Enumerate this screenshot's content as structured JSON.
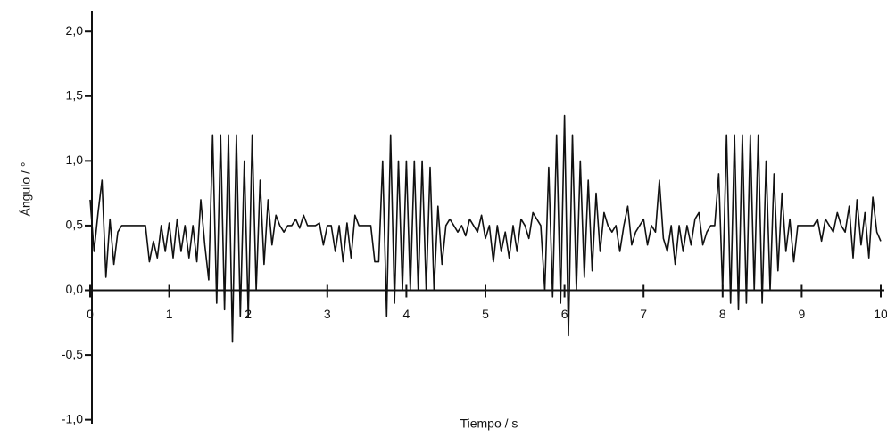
{
  "chart_data": {
    "type": "line",
    "xlabel": "Tiempo / s",
    "ylabel": "Ángulo / °",
    "x": [
      0,
      0.05,
      0.1,
      0.15,
      0.2,
      0.25,
      0.3,
      0.35,
      0.4,
      0.45,
      0.5,
      0.55,
      0.6,
      0.65,
      0.7,
      0.75,
      0.8,
      0.85,
      0.9,
      0.95,
      1,
      1.05,
      1.1,
      1.15,
      1.2,
      1.25,
      1.3,
      1.35,
      1.4,
      1.45,
      1.5,
      1.55,
      1.6,
      1.65,
      1.7,
      1.75,
      1.8,
      1.85,
      1.9,
      1.95,
      2,
      2.05,
      2.1,
      2.15,
      2.2,
      2.25,
      2.3,
      2.35,
      2.4,
      2.45,
      2.5,
      2.55,
      2.6,
      2.65,
      2.7,
      2.75,
      2.8,
      2.85,
      2.9,
      2.95,
      3,
      3.05,
      3.1,
      3.15,
      3.2,
      3.25,
      3.3,
      3.35,
      3.4,
      3.45,
      3.5,
      3.55,
      3.6,
      3.65,
      3.7,
      3.75,
      3.8,
      3.85,
      3.9,
      3.95,
      4,
      4.05,
      4.1,
      4.15,
      4.2,
      4.25,
      4.3,
      4.35,
      4.4,
      4.45,
      4.5,
      4.55,
      4.6,
      4.65,
      4.7,
      4.75,
      4.8,
      4.85,
      4.9,
      4.95,
      5,
      5.05,
      5.1,
      5.15,
      5.2,
      5.25,
      5.3,
      5.35,
      5.4,
      5.45,
      5.5,
      5.55,
      5.6,
      5.65,
      5.7,
      5.75,
      5.8,
      5.85,
      5.9,
      5.95,
      6,
      6.05,
      6.1,
      6.15,
      6.2,
      6.25,
      6.3,
      6.35,
      6.4,
      6.45,
      6.5,
      6.55,
      6.6,
      6.65,
      6.7,
      6.75,
      6.8,
      6.85,
      6.9,
      6.95,
      7,
      7.05,
      7.1,
      7.15,
      7.2,
      7.25,
      7.3,
      7.35,
      7.4,
      7.45,
      7.5,
      7.55,
      7.6,
      7.65,
      7.7,
      7.75,
      7.8,
      7.85,
      7.9,
      7.95,
      8,
      8.05,
      8.1,
      8.15,
      8.2,
      8.25,
      8.3,
      8.35,
      8.4,
      8.45,
      8.5,
      8.55,
      8.6,
      8.65,
      8.7,
      8.75,
      8.8,
      8.85,
      8.9,
      8.95,
      9,
      9.05,
      9.1,
      9.15,
      9.2,
      9.25,
      9.3,
      9.35,
      9.4,
      9.45,
      9.5,
      9.55,
      9.6,
      9.65,
      9.7,
      9.75,
      9.8,
      9.85,
      9.9,
      9.95,
      10
    ],
    "series": [
      {
        "color": "#111111",
        "values": [
          0.7,
          0.3,
          0.6,
          0.85,
          0.1,
          0.55,
          0.2,
          0.45,
          0.5,
          0.5,
          0.5,
          0.5,
          0.5,
          0.5,
          0.5,
          0.22,
          0.38,
          0.25,
          0.5,
          0.3,
          0.52,
          0.25,
          0.55,
          0.3,
          0.5,
          0.25,
          0.5,
          0.22,
          0.7,
          0.35,
          0.08,
          1.2,
          -0.1,
          1.2,
          -0.15,
          1.2,
          -0.4,
          1.2,
          -0.2,
          1.0,
          -0.2,
          1.2,
          0.0,
          0.85,
          0.2,
          0.7,
          0.35,
          0.58,
          0.5,
          0.45,
          0.5,
          0.5,
          0.55,
          0.48,
          0.58,
          0.5,
          0.5,
          0.5,
          0.52,
          0.35,
          0.5,
          0.5,
          0.3,
          0.5,
          0.22,
          0.52,
          0.25,
          0.58,
          0.5,
          0.5,
          0.5,
          0.5,
          0.22,
          0.22,
          1.0,
          -0.2,
          1.2,
          -0.1,
          1.0,
          0.0,
          1.0,
          0.0,
          1.0,
          0.0,
          1.0,
          0.0,
          0.95,
          0.0,
          0.65,
          0.2,
          0.5,
          0.55,
          0.5,
          0.45,
          0.5,
          0.42,
          0.55,
          0.5,
          0.45,
          0.58,
          0.4,
          0.5,
          0.22,
          0.5,
          0.3,
          0.45,
          0.25,
          0.5,
          0.3,
          0.55,
          0.5,
          0.4,
          0.6,
          0.55,
          0.5,
          0.0,
          0.95,
          -0.05,
          1.2,
          -0.1,
          1.35,
          -0.35,
          1.2,
          0.0,
          1.0,
          0.1,
          0.85,
          0.15,
          0.75,
          0.3,
          0.6,
          0.5,
          0.45,
          0.5,
          0.3,
          0.5,
          0.65,
          0.35,
          0.45,
          0.5,
          0.55,
          0.35,
          0.5,
          0.45,
          0.85,
          0.4,
          0.3,
          0.5,
          0.2,
          0.5,
          0.3,
          0.5,
          0.35,
          0.55,
          0.6,
          0.35,
          0.45,
          0.5,
          0.5,
          0.9,
          0.0,
          1.2,
          -0.1,
          1.2,
          -0.15,
          1.2,
          -0.1,
          1.2,
          0.0,
          1.2,
          -0.1,
          1.0,
          0.0,
          0.9,
          0.15,
          0.75,
          0.3,
          0.55,
          0.22,
          0.5,
          0.5,
          0.5,
          0.5,
          0.5,
          0.55,
          0.38,
          0.55,
          0.5,
          0.45,
          0.6,
          0.5,
          0.45,
          0.65,
          0.25,
          0.7,
          0.35,
          0.6,
          0.25,
          0.72,
          0.45,
          0.38
        ]
      }
    ],
    "xlim": [
      0,
      10
    ],
    "ylim": [
      -1.03,
      2.16
    ],
    "xticks": [
      0,
      1,
      2,
      3,
      4,
      5,
      6,
      7,
      8,
      9,
      10
    ],
    "yticks": [
      {
        "value": -1,
        "label": "-1,0"
      },
      {
        "value": -0.5,
        "label": "-0,5"
      },
      {
        "value": 0,
        "label": "0,0"
      },
      {
        "value": 0.5,
        "label": "0,5"
      },
      {
        "value": 1,
        "label": "1,0"
      },
      {
        "value": 1.5,
        "label": "1,5"
      },
      {
        "value": 2,
        "label": "2,0"
      }
    ]
  }
}
